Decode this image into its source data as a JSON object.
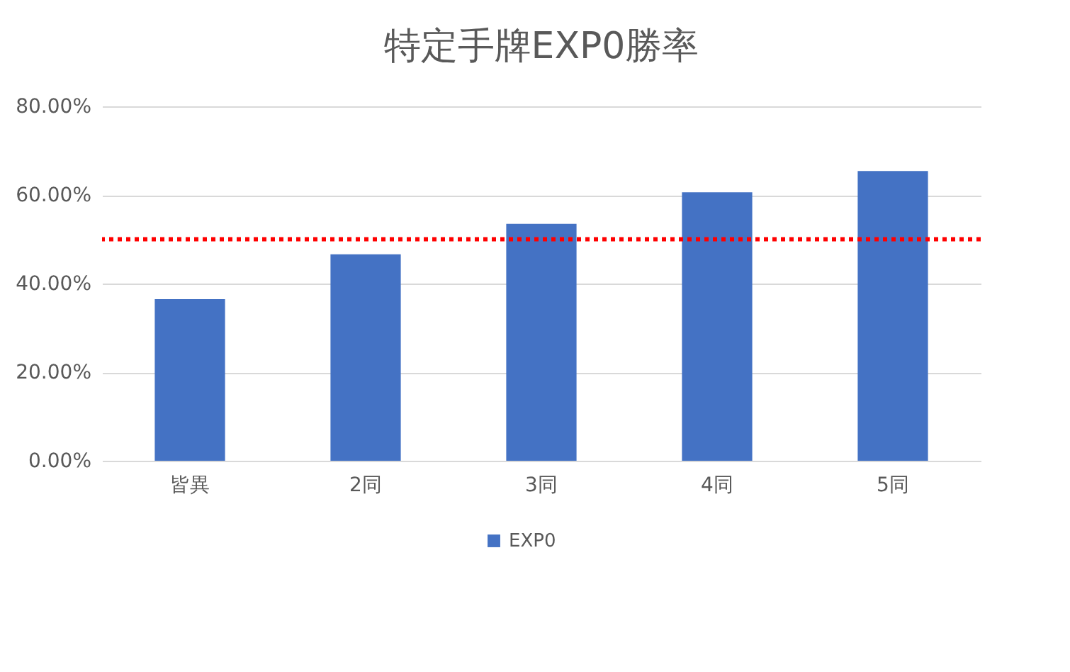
{
  "chart_data": {
    "type": "bar",
    "title": "特定手牌EXP0勝率",
    "categories": [
      "皆異",
      "2同",
      "3同",
      "4同",
      "5同"
    ],
    "series": [
      {
        "name": "EXP0",
        "color": "#4472c4",
        "values": [
          36.5,
          46.6,
          53.5,
          60.6,
          65.4
        ]
      }
    ],
    "ylim": [
      0,
      80
    ],
    "yticks": [
      {
        "value": 0,
        "label": "0.00%"
      },
      {
        "value": 20,
        "label": "20.00%"
      },
      {
        "value": 40,
        "label": "40.00%"
      },
      {
        "value": 60,
        "label": "60.00%"
      },
      {
        "value": 80,
        "label": "80.00%"
      }
    ],
    "ref_lines": [
      {
        "axis": "y",
        "value": 50,
        "color": "#ff0000",
        "line_style": "dotted"
      }
    ],
    "grid": "y",
    "legend": "bottom"
  }
}
